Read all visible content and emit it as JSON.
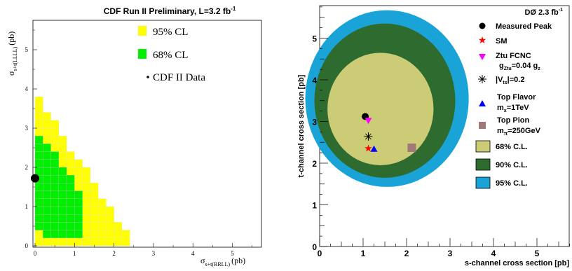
{
  "chart_data": [
    {
      "type": "heatmap",
      "title": "CDF Run II Preliminary, L=3.2 fb",
      "title_sup": "-1",
      "xlabel": "σ",
      "xlabel_sub": "s+t(RRLL)",
      "xlabel_unit": "(pb)",
      "ylabel": "σ",
      "ylabel_sub": "s+t(LLLL)",
      "ylabel_unit": "(pb)",
      "xlim": [
        0,
        5.8
      ],
      "ylim": [
        0,
        5.8
      ],
      "x_ticks": [
        "0",
        "1",
        "2",
        "3",
        "4",
        "5"
      ],
      "y_ticks": [
        "0",
        "1",
        "2",
        "3",
        "4",
        "5"
      ],
      "grid_cell": 0.2,
      "legend": [
        {
          "label": "95% CL",
          "color": "#ffff00"
        },
        {
          "label": "68% CL",
          "color": "#00ee00"
        },
        {
          "label": "CDF II Data",
          "marker": "dot"
        }
      ],
      "data_point": {
        "x": 0.0,
        "y": 1.72
      },
      "region_95_rows": [
        {
          "y0": 0.0,
          "x0": 0.0,
          "x1": 2.4
        },
        {
          "y0": 0.2,
          "x0": 0.0,
          "x1": 2.4
        },
        {
          "y0": 0.4,
          "x0": 0.0,
          "x1": 2.2
        },
        {
          "y0": 0.6,
          "x0": 0.0,
          "x1": 2.0
        },
        {
          "y0": 0.8,
          "x0": 0.0,
          "x1": 2.0
        },
        {
          "y0": 1.0,
          "x0": 0.0,
          "x1": 1.8
        },
        {
          "y0": 1.2,
          "x0": 0.0,
          "x1": 1.6
        },
        {
          "y0": 1.4,
          "x0": 0.0,
          "x1": 1.6
        },
        {
          "y0": 1.6,
          "x0": 0.0,
          "x1": 1.4
        },
        {
          "y0": 1.8,
          "x0": 0.0,
          "x1": 1.4
        },
        {
          "y0": 2.0,
          "x0": 0.0,
          "x1": 1.2
        },
        {
          "y0": 2.2,
          "x0": 0.0,
          "x1": 1.0
        },
        {
          "y0": 2.4,
          "x0": 0.0,
          "x1": 0.8
        },
        {
          "y0": 2.6,
          "x0": 0.0,
          "x1": 0.8
        },
        {
          "y0": 2.8,
          "x0": 0.0,
          "x1": 0.6
        },
        {
          "y0": 3.0,
          "x0": 0.0,
          "x1": 0.6
        },
        {
          "y0": 3.2,
          "x0": 0.0,
          "x1": 0.4
        },
        {
          "y0": 3.4,
          "x0": 0.0,
          "x1": 0.2
        },
        {
          "y0": 3.6,
          "x0": 0.0,
          "x1": 0.2
        }
      ],
      "region_68_rows": [
        {
          "y0": 0.2,
          "x0": 0.2,
          "x1": 1.2
        },
        {
          "y0": 0.4,
          "x0": 0.0,
          "x1": 1.2
        },
        {
          "y0": 0.6,
          "x0": 0.0,
          "x1": 1.2
        },
        {
          "y0": 0.8,
          "x0": 0.0,
          "x1": 1.2
        },
        {
          "y0": 1.0,
          "x0": 0.0,
          "x1": 1.2
        },
        {
          "y0": 1.2,
          "x0": 0.0,
          "x1": 1.2
        },
        {
          "y0": 1.4,
          "x0": 0.0,
          "x1": 1.0
        },
        {
          "y0": 1.6,
          "x0": 0.0,
          "x1": 1.0
        },
        {
          "y0": 1.8,
          "x0": 0.0,
          "x1": 0.8
        },
        {
          "y0": 2.0,
          "x0": 0.0,
          "x1": 0.6
        },
        {
          "y0": 2.2,
          "x0": 0.0,
          "x1": 0.6
        },
        {
          "y0": 2.4,
          "x0": 0.0,
          "x1": 0.4
        },
        {
          "y0": 2.6,
          "x0": 0.0,
          "x1": 0.2
        }
      ]
    },
    {
      "type": "scatter",
      "title": "DØ 2.3 fb",
      "title_sup": "-1",
      "xlabel": "s-channel cross section [pb]",
      "ylabel": "t-channel cross section [pb]",
      "xlim": [
        0,
        5.8
      ],
      "ylim": [
        0,
        5.8
      ],
      "x_ticks": [
        "0",
        "1",
        "2",
        "3",
        "4",
        "5"
      ],
      "y_ticks": [
        "0",
        "1",
        "2",
        "3",
        "4",
        "5"
      ],
      "contours": [
        {
          "label": "95% C.L.",
          "color": "#1aa3d6",
          "cx": 1.55,
          "cy": 3.55,
          "rx": 1.88,
          "ry": 2.12
        },
        {
          "label": "90% C.L.",
          "color": "#2e6b2e",
          "cx": 1.5,
          "cy": 3.5,
          "rx": 1.62,
          "ry": 1.85
        },
        {
          "label": "68% C.L.",
          "color": "#cccc77",
          "cx": 1.4,
          "cy": 3.3,
          "rx": 1.22,
          "ry": 1.35
        }
      ],
      "points": [
        {
          "label": "Measured Peak",
          "marker": "circle",
          "color": "#000000",
          "x": 1.05,
          "y": 3.12
        },
        {
          "label": "SM",
          "marker": "star",
          "color": "#ff0000",
          "x": 1.12,
          "y": 2.36
        },
        {
          "label": "Ztu FCNC",
          "label_line2": "g",
          "label_line2_sub": "Ztu",
          "label_line2_rest": "=0.04 g",
          "label_line2_sub2": "z",
          "marker": "triangle-down",
          "color": "#ff00ff",
          "x": 1.12,
          "y": 3.02
        },
        {
          "label": "|V",
          "label_sub": "ts",
          "label_rest": "|=0.2",
          "marker": "asterisk",
          "color": "#000000",
          "x": 1.12,
          "y": 2.64
        },
        {
          "label": "Top Flavor",
          "label_line2": "m",
          "label_line2_sub": "x",
          "label_line2_rest": "=1TeV",
          "marker": "triangle-up",
          "color": "#0000ff",
          "x": 1.25,
          "y": 2.34
        },
        {
          "label": "Top Pion",
          "label_line2": "m",
          "label_line2_sub": "π",
          "label_line2_rest": "=250GeV",
          "marker": "square",
          "color": "#a07878",
          "x": 2.12,
          "y": 2.37
        }
      ]
    }
  ]
}
